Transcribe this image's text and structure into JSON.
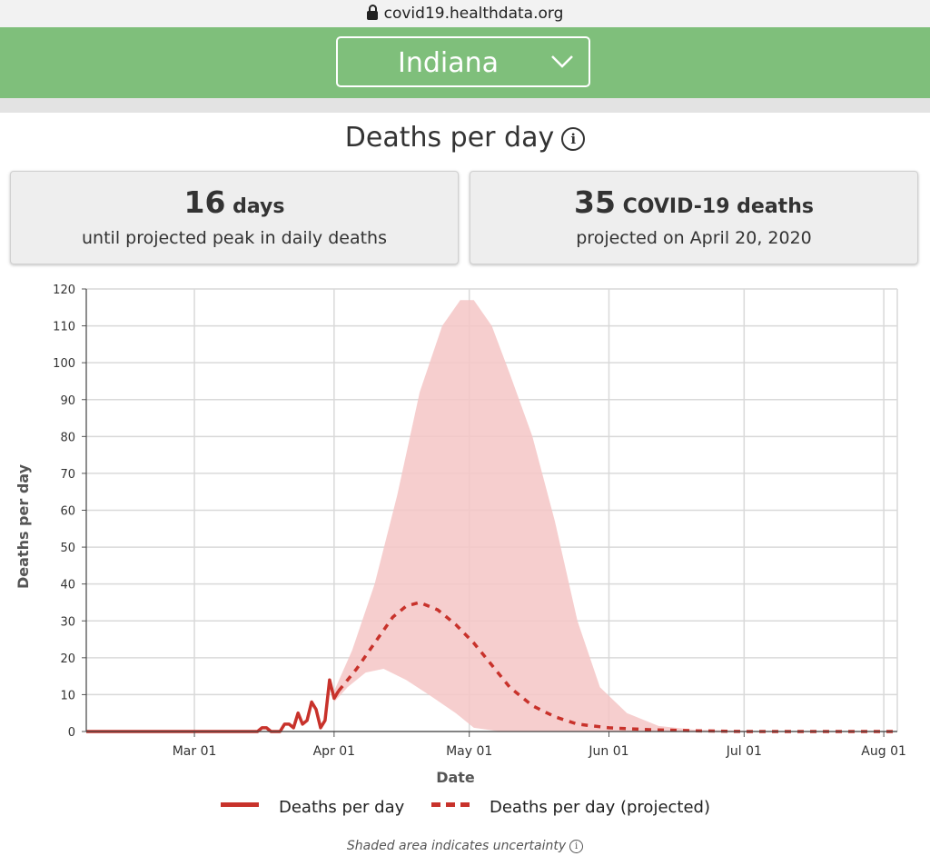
{
  "browser": {
    "url": "covid19.healthdata.org"
  },
  "header": {
    "location": "Indiana"
  },
  "section_title": "Deaths per day",
  "cards": [
    {
      "big_number": "16",
      "big_unit": "days",
      "sub": "until projected peak in daily deaths"
    },
    {
      "big_number": "35",
      "big_unit": "COVID-19 deaths",
      "sub": "projected on April 20, 2020"
    }
  ],
  "legend": {
    "actual": "Deaths per day",
    "projected": "Deaths per day (projected)"
  },
  "note": "Shaded area indicates uncertainty",
  "colors": {
    "line": "#c8322b",
    "band": "#f4c6c6",
    "header": "#7fbf7b"
  },
  "chart_data": {
    "type": "line",
    "xlabel": "Date",
    "ylabel": "Deaths per day",
    "ylim": [
      0,
      120
    ],
    "yticks": [
      0,
      10,
      20,
      30,
      40,
      50,
      60,
      70,
      80,
      90,
      100,
      110,
      120
    ],
    "x_range": [
      "2020-02-06",
      "2020-08-04"
    ],
    "xticks": [
      {
        "date": "2020-03-01",
        "label": "Mar 01"
      },
      {
        "date": "2020-04-01",
        "label": "Apr 01"
      },
      {
        "date": "2020-05-01",
        "label": "May 01"
      },
      {
        "date": "2020-06-01",
        "label": "Jun 01"
      },
      {
        "date": "2020-07-01",
        "label": "Jul 01"
      },
      {
        "date": "2020-08-01",
        "label": "Aug 01"
      }
    ],
    "grid": true,
    "legend_position": "bottom",
    "series": [
      {
        "name": "Deaths per day",
        "style": "solid",
        "points": [
          [
            "2020-02-06",
            0
          ],
          [
            "2020-03-14",
            0
          ],
          [
            "2020-03-15",
            0
          ],
          [
            "2020-03-16",
            1
          ],
          [
            "2020-03-17",
            1
          ],
          [
            "2020-03-18",
            0
          ],
          [
            "2020-03-19",
            0
          ],
          [
            "2020-03-20",
            0
          ],
          [
            "2020-03-21",
            2
          ],
          [
            "2020-03-22",
            2
          ],
          [
            "2020-03-23",
            1
          ],
          [
            "2020-03-24",
            5
          ],
          [
            "2020-03-25",
            2
          ],
          [
            "2020-03-26",
            3
          ],
          [
            "2020-03-27",
            8
          ],
          [
            "2020-03-28",
            6
          ],
          [
            "2020-03-29",
            1
          ],
          [
            "2020-03-30",
            3
          ],
          [
            "2020-03-31",
            14
          ],
          [
            "2020-04-01",
            9
          ],
          [
            "2020-04-02",
            11
          ]
        ]
      },
      {
        "name": "Deaths per day (projected)",
        "style": "dashed",
        "points": [
          [
            "2020-04-02",
            11
          ],
          [
            "2020-04-06",
            17
          ],
          [
            "2020-04-10",
            24
          ],
          [
            "2020-04-14",
            31
          ],
          [
            "2020-04-17",
            34
          ],
          [
            "2020-04-20",
            35
          ],
          [
            "2020-04-24",
            33
          ],
          [
            "2020-04-28",
            29
          ],
          [
            "2020-05-02",
            24
          ],
          [
            "2020-05-06",
            18
          ],
          [
            "2020-05-10",
            12
          ],
          [
            "2020-05-15",
            7
          ],
          [
            "2020-05-20",
            4
          ],
          [
            "2020-05-25",
            2
          ],
          [
            "2020-06-01",
            1
          ],
          [
            "2020-06-10",
            0.5
          ],
          [
            "2020-06-20",
            0.2
          ],
          [
            "2020-07-01",
            0
          ],
          [
            "2020-08-04",
            0
          ]
        ]
      }
    ],
    "uncertainty_band": {
      "upper": [
        [
          "2020-04-01",
          11
        ],
        [
          "2020-04-05",
          22
        ],
        [
          "2020-04-10",
          40
        ],
        [
          "2020-04-15",
          64
        ],
        [
          "2020-04-20",
          92
        ],
        [
          "2020-04-25",
          110
        ],
        [
          "2020-04-29",
          117
        ],
        [
          "2020-05-02",
          117
        ],
        [
          "2020-05-06",
          110
        ],
        [
          "2020-05-10",
          97
        ],
        [
          "2020-05-15",
          80
        ],
        [
          "2020-05-20",
          57
        ],
        [
          "2020-05-25",
          30
        ],
        [
          "2020-05-30",
          12
        ],
        [
          "2020-06-05",
          5
        ],
        [
          "2020-06-12",
          1.5
        ],
        [
          "2020-06-20",
          0.5
        ],
        [
          "2020-07-10",
          0
        ],
        [
          "2020-08-04",
          0
        ]
      ],
      "lower": [
        [
          "2020-08-04",
          0
        ],
        [
          "2020-05-08",
          0
        ],
        [
          "2020-05-02",
          1
        ],
        [
          "2020-04-28",
          5
        ],
        [
          "2020-04-22",
          10
        ],
        [
          "2020-04-17",
          14
        ],
        [
          "2020-04-12",
          17
        ],
        [
          "2020-04-08",
          16
        ],
        [
          "2020-04-04",
          12
        ],
        [
          "2020-04-01",
          8
        ]
      ]
    }
  }
}
